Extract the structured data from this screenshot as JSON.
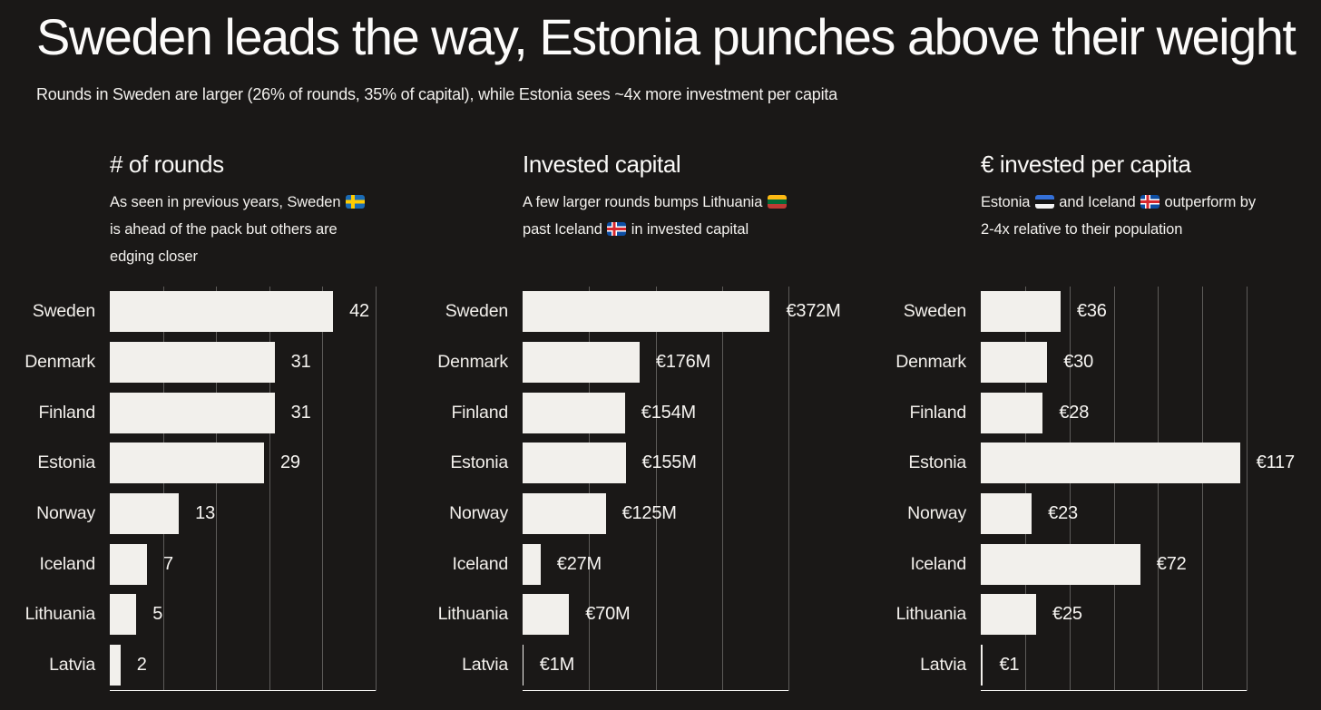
{
  "page": {
    "title": "Sweden leads the way, Estonia punches above their weight",
    "subtitle": "Rounds in Sweden are larger (26% of rounds, 35% of capital), while Estonia sees ~4x more investment per capita"
  },
  "colors": {
    "background": "#1a1817",
    "bar_fill": "#f2f0ec",
    "gridline": "#5d5b59",
    "axis_line": "#f3f2f0",
    "text": "#f5f3ef"
  },
  "flags": {
    "sweden": {
      "type": "nordic",
      "bg": "#1a6bb5",
      "cross": "#fecb00"
    },
    "lithuania": {
      "type": "stripes",
      "stripes": [
        "#fdb913",
        "#046a38",
        "#be3a34"
      ]
    },
    "iceland": {
      "type": "nordic",
      "bg": "#0d4ea3",
      "cross": "#d7282f",
      "outline": "#ffffff"
    },
    "estonia": {
      "type": "stripes",
      "stripes": [
        "#3470d8",
        "#141414",
        "#f2f2f2"
      ]
    }
  },
  "chart_data": [
    {
      "type": "bar",
      "orientation": "horizontal",
      "title": "# of rounds",
      "subtitle_lines": [
        [
          {
            "text": "As seen in previous years, Sweden "
          },
          {
            "flag": "sweden"
          }
        ],
        [
          {
            "text": "is ahead of the pack but others are"
          }
        ],
        [
          {
            "text": "edging closer"
          }
        ]
      ],
      "categories": [
        "Sweden",
        "Denmark",
        "Finland",
        "Estonia",
        "Norway",
        "Iceland",
        "Lithuania",
        "Latvia"
      ],
      "values": [
        42,
        31,
        31,
        29,
        13,
        7,
        5,
        2
      ],
      "labels": [
        "42",
        "31",
        "31",
        "29",
        "13",
        "7",
        "5",
        "2"
      ],
      "xlim": [
        0,
        50
      ],
      "gridline_step": 10,
      "grid": true,
      "legend": false
    },
    {
      "type": "bar",
      "orientation": "horizontal",
      "title": "Invested capital",
      "subtitle_lines": [
        [
          {
            "text": "A few larger rounds bumps Lithuania "
          },
          {
            "flag": "lithuania"
          }
        ],
        [
          {
            "text": "past Iceland "
          },
          {
            "flag": "iceland"
          },
          {
            "text": " in invested capital"
          }
        ]
      ],
      "categories": [
        "Sweden",
        "Denmark",
        "Finland",
        "Estonia",
        "Norway",
        "Iceland",
        "Lithuania",
        "Latvia"
      ],
      "values": [
        372,
        176,
        154,
        155,
        125,
        27,
        70,
        1
      ],
      "labels": [
        "€372M",
        "€176M",
        "€154M",
        "€155M",
        "€125M",
        "€27M",
        "€70M",
        "€1M"
      ],
      "xlim": [
        0,
        400
      ],
      "gridline_step": 100,
      "grid": true,
      "legend": false
    },
    {
      "type": "bar",
      "orientation": "horizontal",
      "title": "€ invested per capita",
      "subtitle_lines": [
        [
          {
            "text": "Estonia "
          },
          {
            "flag": "estonia"
          },
          {
            "text": " and Iceland "
          },
          {
            "flag": "iceland"
          },
          {
            "text": " outperform by"
          }
        ],
        [
          {
            "text": "2-4x relative to their population"
          }
        ]
      ],
      "categories": [
        "Sweden",
        "Denmark",
        "Finland",
        "Estonia",
        "Norway",
        "Iceland",
        "Lithuania",
        "Latvia"
      ],
      "values": [
        36,
        30,
        28,
        117,
        23,
        72,
        25,
        1
      ],
      "labels": [
        "€36",
        "€30",
        "€28",
        "€117",
        "€23",
        "€72",
        "€25",
        "€1"
      ],
      "xlim": [
        0,
        120
      ],
      "gridline_step": 20,
      "grid": true,
      "legend": false
    }
  ]
}
